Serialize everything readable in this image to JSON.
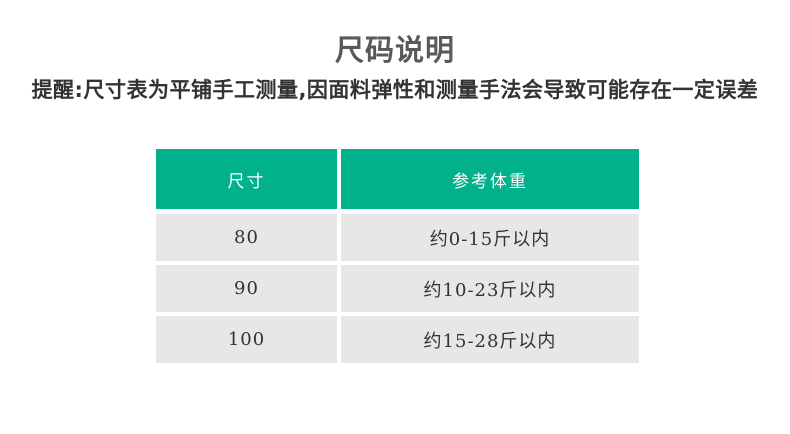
{
  "page": {
    "title": "尺码说明",
    "notice": "提醒:尺寸表为平铺手工测量,因面料弹性和测量手法会导致可能存在一定误差"
  },
  "size_table": {
    "columns": [
      "尺寸",
      "参考体重"
    ],
    "rows": [
      {
        "size": "80",
        "weight": "约0-15斤以内"
      },
      {
        "size": "90",
        "weight": "约10-23斤以内"
      },
      {
        "size": "100",
        "weight": "约15-28斤以内"
      }
    ]
  },
  "colors": {
    "header_bg": "#00b18c",
    "header_text": "#ffffff",
    "row_bg": "#e8e6e6",
    "body_text": "#333333",
    "title_text": "#595959",
    "notice_text": "#333333",
    "page_bg": "#ffffff"
  }
}
